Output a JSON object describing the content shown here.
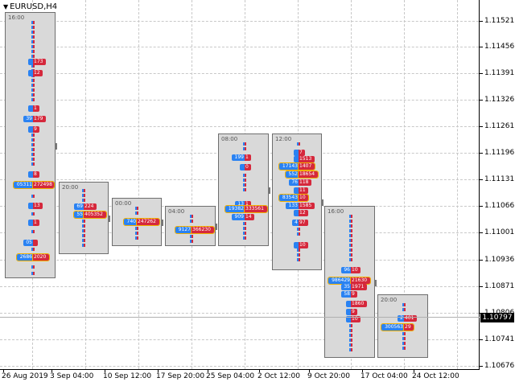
{
  "symbol": "EURUSD,H4",
  "price_axis": [
    "1.11521",
    "1.11456",
    "1.11391",
    "1.11326",
    "1.11261",
    "1.11196",
    "1.11131",
    "1.11066",
    "1.11001",
    "1.10936",
    "1.10871",
    "1.10806",
    "1.10741",
    "1.10676"
  ],
  "current_price": "1.10797",
  "time_axis": [
    "26 Aug 2019",
    "3 Sep 04:00",
    "10 Sep 12:00",
    "17 Sep 20:00",
    "25 Sep 04:00",
    "2 Oct 12:00",
    "9 Oct 20:00",
    "17 Oct 04:00",
    "24 Oct 12:00"
  ],
  "sessions": [
    {
      "label": "16:00",
      "values": [
        [
          "",
          "173"
        ],
        [
          "",
          "12"
        ],
        [
          "",
          "1"
        ],
        [
          "39",
          "179"
        ],
        [
          "",
          "9"
        ],
        [
          "",
          "8"
        ],
        [
          "05311",
          "272498"
        ],
        [
          "",
          "13"
        ],
        [
          "",
          "1"
        ],
        [
          "05",
          ""
        ],
        [
          "2686",
          "2020"
        ]
      ]
    },
    {
      "label": "20:00",
      "values": [
        [
          "69",
          "224"
        ],
        [
          "55",
          "405352"
        ]
      ]
    },
    {
      "label": "00:00",
      "values": [
        [
          "740",
          "247262"
        ]
      ]
    },
    {
      "label": "04:00",
      "values": [
        [
          "9127",
          "366230"
        ]
      ]
    },
    {
      "label": "08:00",
      "values": [
        [
          "199",
          "1"
        ],
        [
          "",
          "0"
        ],
        [
          "13",
          "1"
        ],
        [
          "19382",
          "333561"
        ],
        [
          "909",
          "14"
        ]
      ]
    },
    {
      "label": "12:00",
      "values": [
        [
          "",
          "7"
        ],
        [
          "",
          "1513"
        ],
        [
          "17143",
          "1407"
        ],
        [
          "552",
          "18654"
        ],
        [
          "76",
          "118"
        ],
        [
          "",
          "11"
        ],
        [
          "83543",
          "10"
        ],
        [
          "133",
          "1585"
        ],
        [
          "",
          "12"
        ],
        [
          "4",
          "97"
        ],
        [
          "",
          "10"
        ]
      ]
    },
    {
      "label": "16:00",
      "values": [
        [
          "96",
          "10"
        ],
        [
          "986429",
          "21630"
        ],
        [
          "35",
          "1971"
        ],
        [
          "58",
          "9"
        ],
        [
          "",
          "1860"
        ],
        [
          "",
          "9"
        ],
        [
          "",
          "10"
        ]
      ]
    },
    {
      "label": "20:00",
      "values": [
        [
          "2",
          "401"
        ],
        [
          "300563",
          "29"
        ]
      ]
    }
  ]
}
